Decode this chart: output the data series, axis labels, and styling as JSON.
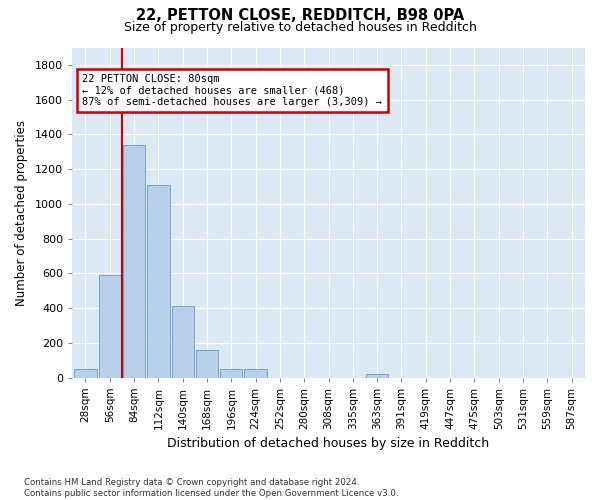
{
  "title1": "22, PETTON CLOSE, REDDITCH, B98 0PA",
  "title2": "Size of property relative to detached houses in Redditch",
  "xlabel": "Distribution of detached houses by size in Redditch",
  "ylabel": "Number of detached properties",
  "footnote": "Contains HM Land Registry data © Crown copyright and database right 2024.\nContains public sector information licensed under the Open Government Licence v3.0.",
  "bin_labels": [
    "28sqm",
    "56sqm",
    "84sqm",
    "112sqm",
    "140sqm",
    "168sqm",
    "196sqm",
    "224sqm",
    "252sqm",
    "280sqm",
    "308sqm",
    "335sqm",
    "363sqm",
    "391sqm",
    "419sqm",
    "447sqm",
    "475sqm",
    "503sqm",
    "531sqm",
    "559sqm",
    "587sqm"
  ],
  "bar_values": [
    50,
    590,
    1340,
    1110,
    410,
    160,
    50,
    50,
    0,
    0,
    0,
    0,
    20,
    0,
    0,
    0,
    0,
    0,
    0,
    0,
    0
  ],
  "bar_color": "#b8d0ea",
  "bar_edge_color": "#6699cc",
  "annotation_text": "22 PETTON CLOSE: 80sqm\n← 12% of detached houses are smaller (468)\n87% of semi-detached houses are larger (3,309) →",
  "annotation_box_color": "#ffffff",
  "annotation_box_edge": "#cc0000",
  "red_line_color": "#cc0000",
  "red_line_x": 1.5,
  "ylim": [
    0,
    1900
  ],
  "yticks": [
    0,
    200,
    400,
    600,
    800,
    1000,
    1200,
    1400,
    1600,
    1800
  ],
  "background_color": "#dce9f5",
  "fig_background": "#ffffff",
  "grid_color": "#ffffff"
}
